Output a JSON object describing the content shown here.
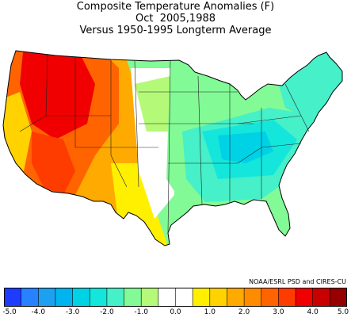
{
  "header": {
    "title": "Composite Temperature Anomalies (F)",
    "subtitle": "Oct  2005,1988",
    "caption": "Versus 1950-1995 Longterm Average"
  },
  "credit": "NOAA/ESRL PSD and CIRES-CU",
  "colorbar": {
    "colors": [
      "#1e3cff",
      "#2882ff",
      "#1ea0f0",
      "#00b4f0",
      "#00d2e6",
      "#14e6dc",
      "#46f0c8",
      "#82fa96",
      "#b4fa78",
      "#ffffff",
      "#ffffff",
      "#fff000",
      "#ffd200",
      "#ffaa00",
      "#ff8c00",
      "#ff6400",
      "#ff3c00",
      "#f00000",
      "#c80000",
      "#960000"
    ],
    "tick_labels": [
      "-5.0",
      "-4.0",
      "-3.0",
      "-2.0",
      "-1.0",
      "0.0",
      "1.0",
      "2.0",
      "3.0",
      "4.0",
      "5.0"
    ],
    "min": -5.0,
    "max": 5.0,
    "step": 0.5
  },
  "map_colors": {
    "outline": "#000000",
    "county_lines": "#444444"
  }
}
